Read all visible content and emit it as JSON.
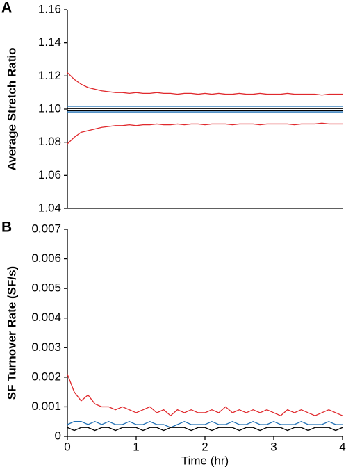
{
  "chart_data": [
    {
      "type": "line",
      "panel_label": "A",
      "ylabel": "Average Stretch Ratio",
      "xlim": [
        0,
        4
      ],
      "ylim": [
        1.04,
        1.16
      ],
      "yticks": [
        1.04,
        1.06,
        1.08,
        {
          "value": 1.1,
          "label": "1.10"
        },
        1.12,
        1.14,
        1.16
      ],
      "grid": false,
      "x": [
        0,
        0.1,
        0.2,
        0.3,
        0.4,
        0.5,
        0.6,
        0.7,
        0.8,
        0.9,
        1,
        1.1,
        1.2,
        1.3,
        1.4,
        1.5,
        1.6,
        1.7,
        1.8,
        1.9,
        2,
        2.1,
        2.2,
        2.3,
        2.4,
        2.5,
        2.6,
        2.7,
        2.8,
        2.9,
        3,
        3.1,
        3.2,
        3.3,
        3.4,
        3.5,
        3.6,
        3.7,
        3.8,
        3.9,
        4
      ],
      "series": [
        {
          "color": "#e0282c",
          "values": [
            1.122,
            1.118,
            1.115,
            1.113,
            1.112,
            1.111,
            1.1105,
            1.11,
            1.11,
            1.1095,
            1.11,
            1.1095,
            1.1095,
            1.11,
            1.1095,
            1.1095,
            1.109,
            1.1095,
            1.1095,
            1.109,
            1.1095,
            1.109,
            1.1095,
            1.109,
            1.109,
            1.1095,
            1.109,
            1.109,
            1.1095,
            1.109,
            1.109,
            1.109,
            1.1095,
            1.109,
            1.109,
            1.109,
            1.109,
            1.1085,
            1.109,
            1.109,
            1.109
          ]
        },
        {
          "color": "#e0282c",
          "values": [
            1.079,
            1.083,
            1.086,
            1.087,
            1.088,
            1.089,
            1.0895,
            1.09,
            1.09,
            1.0905,
            1.09,
            1.0905,
            1.0905,
            1.091,
            1.0905,
            1.0905,
            1.091,
            1.0905,
            1.091,
            1.091,
            1.0905,
            1.091,
            1.091,
            1.091,
            1.0905,
            1.091,
            1.091,
            1.091,
            1.0905,
            1.091,
            1.091,
            1.091,
            1.091,
            1.0905,
            1.091,
            1.091,
            1.091,
            1.0915,
            1.091,
            1.091,
            1.091
          ]
        },
        {
          "color": "#1f6fb4",
          "values": [
            1.1017,
            1.1017,
            1.1017,
            1.1017,
            1.1017,
            1.1017,
            1.1017,
            1.1017,
            1.1017,
            1.1017,
            1.1017,
            1.1017,
            1.1017,
            1.1017,
            1.1017,
            1.1017,
            1.1017,
            1.1017,
            1.1017,
            1.1017,
            1.1017,
            1.1017,
            1.1017,
            1.1017,
            1.1017,
            1.1017,
            1.1017,
            1.1017,
            1.1017,
            1.1017,
            1.1017,
            1.1017,
            1.1017,
            1.1017,
            1.1017,
            1.1017,
            1.1017,
            1.1017,
            1.1017,
            1.1017,
            1.1017
          ]
        },
        {
          "color": "#000000",
          "values": [
            1.1003,
            1.1003,
            1.1003,
            1.1003,
            1.1003,
            1.1003,
            1.1003,
            1.1003,
            1.1003,
            1.1003,
            1.1003,
            1.1003,
            1.1003,
            1.1003,
            1.1003,
            1.1003,
            1.1003,
            1.1003,
            1.1003,
            1.1003,
            1.1003,
            1.1003,
            1.1003,
            1.1003,
            1.1003,
            1.1003,
            1.1003,
            1.1003,
            1.1003,
            1.1003,
            1.1003,
            1.1003,
            1.1003,
            1.1003,
            1.1003,
            1.1003,
            1.1003,
            1.1003,
            1.1003,
            1.1003,
            1.1003
          ]
        },
        {
          "color": "#000000",
          "values": [
            1.099,
            1.099,
            1.099,
            1.099,
            1.099,
            1.099,
            1.099,
            1.099,
            1.099,
            1.099,
            1.099,
            1.099,
            1.099,
            1.099,
            1.099,
            1.099,
            1.099,
            1.099,
            1.099,
            1.099,
            1.099,
            1.099,
            1.099,
            1.099,
            1.099,
            1.099,
            1.099,
            1.099,
            1.099,
            1.099,
            1.099,
            1.099,
            1.099,
            1.099,
            1.099,
            1.099,
            1.099,
            1.099,
            1.099,
            1.099,
            1.099
          ]
        },
        {
          "color": "#1f6fb4",
          "values": [
            1.0983,
            1.0983,
            1.0983,
            1.0983,
            1.0983,
            1.0983,
            1.0983,
            1.0983,
            1.0983,
            1.0983,
            1.0983,
            1.0983,
            1.0983,
            1.0983,
            1.0983,
            1.0983,
            1.0983,
            1.0983,
            1.0983,
            1.0983,
            1.0983,
            1.0983,
            1.0983,
            1.0983,
            1.0983,
            1.0983,
            1.0983,
            1.0983,
            1.0983,
            1.0983,
            1.0983,
            1.0983,
            1.0983,
            1.0983,
            1.0983,
            1.0983,
            1.0983,
            1.0983,
            1.0983,
            1.0983,
            1.0983
          ]
        }
      ]
    },
    {
      "type": "line",
      "panel_label": "B",
      "ylabel": "SF Turnover Rate (SF/s)",
      "xlabel": "Time (hr)",
      "xlim": [
        0,
        4
      ],
      "xticks": [
        0,
        1,
        2,
        3,
        4
      ],
      "ylim": [
        0,
        0.007
      ],
      "yticks": [
        0,
        0.001,
        0.002,
        0.003,
        0.004,
        0.005,
        0.006,
        0.007
      ],
      "grid": false,
      "x": [
        0,
        0.1,
        0.2,
        0.3,
        0.4,
        0.5,
        0.6,
        0.7,
        0.8,
        0.9,
        1,
        1.1,
        1.2,
        1.3,
        1.4,
        1.5,
        1.6,
        1.7,
        1.8,
        1.9,
        2,
        2.1,
        2.2,
        2.3,
        2.4,
        2.5,
        2.6,
        2.7,
        2.8,
        2.9,
        3,
        3.1,
        3.2,
        3.3,
        3.4,
        3.5,
        3.6,
        3.7,
        3.8,
        3.9,
        4
      ],
      "series": [
        {
          "color": "#e0282c",
          "values": [
            0.0021,
            0.0015,
            0.0012,
            0.0014,
            0.0011,
            0.001,
            0.001,
            0.0009,
            0.001,
            0.0009,
            0.0008,
            0.0009,
            0.001,
            0.0008,
            0.0009,
            0.0007,
            0.0009,
            0.0008,
            0.0009,
            0.0008,
            0.0008,
            0.0009,
            0.0008,
            0.001,
            0.0008,
            0.0009,
            0.0008,
            0.0009,
            0.0008,
            0.0009,
            0.0008,
            0.0007,
            0.0009,
            0.0008,
            0.0009,
            0.0008,
            0.0007,
            0.0008,
            0.0009,
            0.0008,
            0.0007
          ]
        },
        {
          "color": "#1f6fb4",
          "values": [
            0.0004,
            0.0005,
            0.0005,
            0.0004,
            0.0005,
            0.0004,
            0.0005,
            0.0004,
            0.0004,
            0.0005,
            0.0004,
            0.0004,
            0.0005,
            0.0004,
            0.0004,
            0.0003,
            0.0004,
            0.0005,
            0.0004,
            0.0004,
            0.0004,
            0.0005,
            0.0004,
            0.0004,
            0.0005,
            0.0004,
            0.0004,
            0.0005,
            0.0004,
            0.0004,
            0.0005,
            0.0004,
            0.0004,
            0.0004,
            0.0005,
            0.0004,
            0.0004,
            0.0004,
            0.0005,
            0.0004,
            0.0004
          ]
        },
        {
          "color": "#000000",
          "values": [
            0.0003,
            0.0002,
            0.0003,
            0.0003,
            0.0002,
            0.0003,
            0.0003,
            0.0002,
            0.0003,
            0.0003,
            0.0003,
            0.0002,
            0.0003,
            0.0003,
            0.0002,
            0.0003,
            0.0003,
            0.0003,
            0.0002,
            0.0003,
            0.0003,
            0.0002,
            0.0003,
            0.0003,
            0.0003,
            0.0002,
            0.0003,
            0.0003,
            0.0002,
            0.0003,
            0.0003,
            0.0003,
            0.0002,
            0.0003,
            0.0003,
            0.0002,
            0.0003,
            0.0003,
            0.0003,
            0.0002,
            0.0003
          ]
        }
      ]
    }
  ]
}
